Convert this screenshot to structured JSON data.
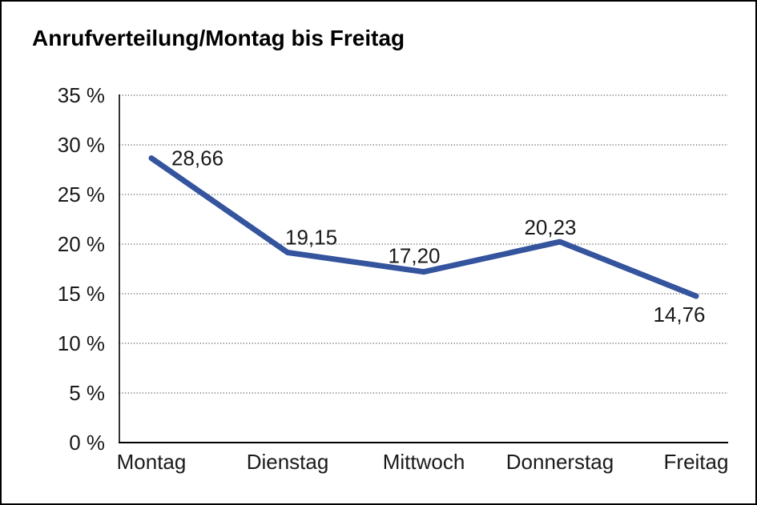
{
  "window": {
    "background": "#ffffff",
    "border_color": "#000000"
  },
  "chart_data": {
    "type": "line",
    "title": "Anrufverteilung/Montag bis Freitag",
    "categories": [
      "Montag",
      "Dienstag",
      "Mittwoch",
      "Donnerstag",
      "Freitag"
    ],
    "series": [
      {
        "name": "Anrufverteilung",
        "values": [
          28.66,
          19.15,
          17.2,
          20.23,
          14.76
        ],
        "point_labels": [
          "28,66",
          "19,15",
          "17,20",
          "20,23",
          "14,76"
        ],
        "color": "#34549E",
        "line_width": 7
      }
    ],
    "xlabel": "",
    "ylabel": "",
    "ylim": [
      0,
      35
    ],
    "y_ticks": [
      0,
      5,
      10,
      15,
      20,
      25,
      30,
      35
    ],
    "y_tick_labels": [
      "0 %",
      "5 %",
      "10 %",
      "15 %",
      "20 %",
      "25 %",
      "30 %",
      "35 %"
    ],
    "grid": "horizontal-dotted",
    "grid_color": "#595959",
    "axis_color": "#000000",
    "legend": "none"
  }
}
